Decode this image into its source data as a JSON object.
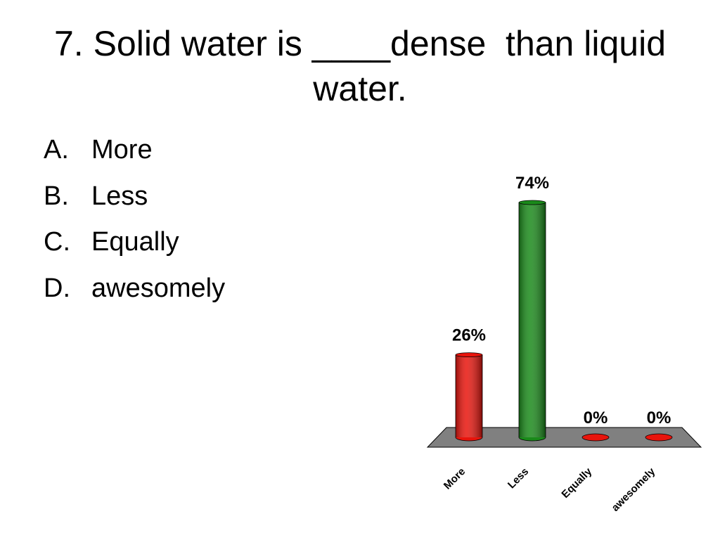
{
  "title": "7. Solid water is ____dense  than liquid water.",
  "choices": [
    {
      "marker": "A.",
      "text": "More"
    },
    {
      "marker": "B.",
      "text": "Less"
    },
    {
      "marker": "C.",
      "text": "Equally"
    },
    {
      "marker": "D.",
      "text": "awesomely"
    }
  ],
  "chart_data": {
    "type": "bar",
    "categories": [
      "More",
      "Less",
      "Equally",
      "awesomely"
    ],
    "values": [
      26,
      74,
      0,
      0
    ],
    "value_labels": [
      "26%",
      "74%",
      "0%",
      "0%"
    ],
    "colors": [
      "#e8140c",
      "#1a8a1a",
      "#e8140c",
      "#e8140c"
    ]
  }
}
